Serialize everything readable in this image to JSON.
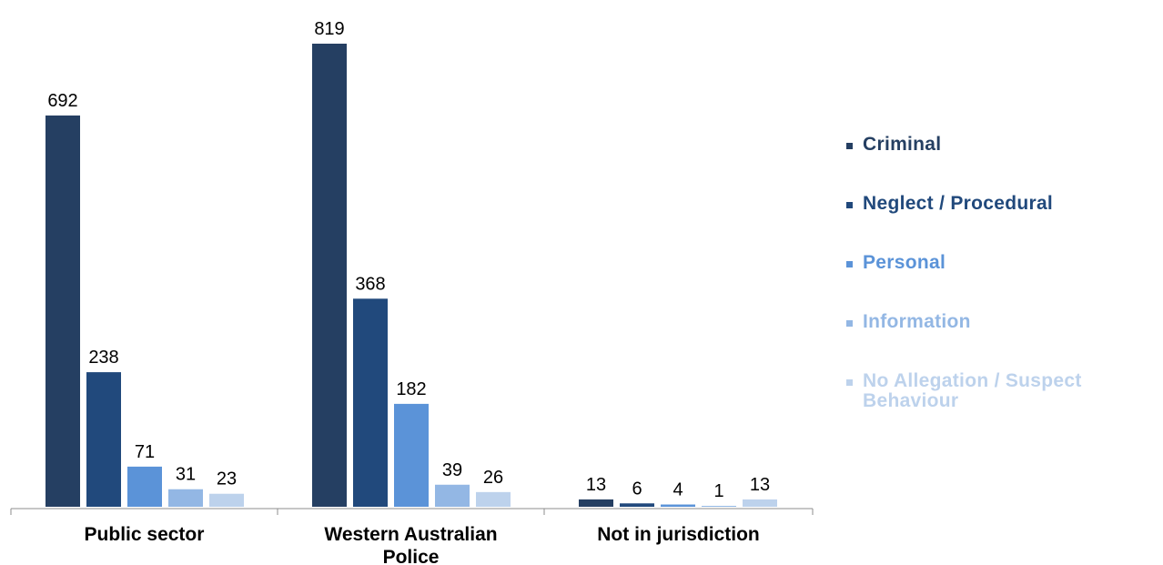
{
  "chart_data": {
    "type": "bar",
    "categories": [
      "Public sector",
      "Western Australian Police",
      "Not in jurisdiction"
    ],
    "series": [
      {
        "name": "Criminal",
        "color": "#253f62",
        "values": [
          692,
          819,
          13
        ]
      },
      {
        "name": "Neglect / Procedural",
        "color": "#21497c",
        "values": [
          238,
          368,
          6
        ]
      },
      {
        "name": "Personal",
        "color": "#5b93d8",
        "values": [
          71,
          182,
          4
        ]
      },
      {
        "name": "Information",
        "color": "#93b7e4",
        "values": [
          31,
          39,
          1
        ]
      },
      {
        "name": "No Allegation / Suspect Behaviour",
        "color": "#bdd2ec",
        "values": [
          23,
          26,
          13
        ]
      }
    ],
    "title": "",
    "xlabel": "",
    "ylabel": "",
    "ylim": [
      0,
      819
    ],
    "grid": false,
    "data_labels": true,
    "legend_position": "right"
  }
}
